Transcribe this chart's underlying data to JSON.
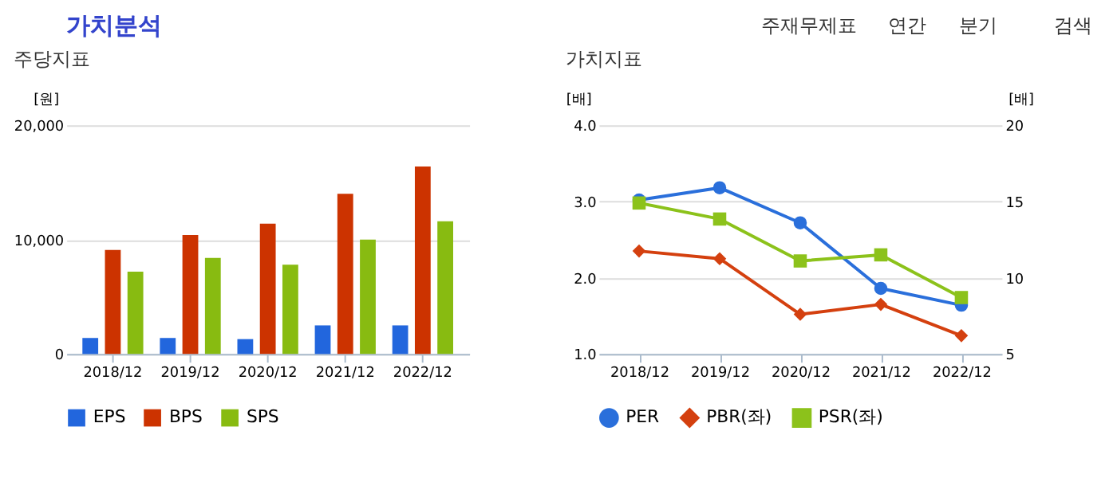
{
  "chart_data": [
    {
      "type": "other",
      "title": "가치분석",
      "annotations": [
        "주재무제표",
        "연간",
        "분기",
        "검색"
      ]
    },
    {
      "type": "bar",
      "title": "주당지표",
      "ylabel": "[원]",
      "categories": [
        "2018/12",
        "2019/12",
        "2020/12",
        "2021/12",
        "2022/12"
      ],
      "series": [
        {
          "name": "EPS",
          "color": "#2266dd",
          "values": [
            1400,
            1400,
            1300,
            2500,
            2500
          ]
        },
        {
          "name": "BPS",
          "color": "#cc3300",
          "values": [
            9100,
            10400,
            11400,
            14000,
            16400
          ]
        },
        {
          "name": "SPS",
          "color": "#88bb11",
          "values": [
            7200,
            8400,
            7800,
            10000,
            11600
          ]
        }
      ],
      "ylim": [
        0,
        20000
      ],
      "yticks": [
        0,
        {
          "value": 10000,
          "label": "10,000"
        },
        {
          "value": 20000,
          "label": "20,000"
        }
      ],
      "grid": "y",
      "legend": "bottom"
    },
    {
      "type": "line",
      "title": "가치지표",
      "ylabel": "[배]",
      "y2label": "[배]",
      "categories": [
        "2018/12",
        "2019/12",
        "2020/12",
        "2021/12",
        "2022/12"
      ],
      "series": [
        {
          "name": "PER",
          "color": "#2a6fdb",
          "marker": "circle",
          "axis": "y2",
          "values": [
            15.1,
            15.9,
            13.6,
            9.3,
            8.2
          ]
        },
        {
          "name": "PBR(좌)",
          "color": "#d4400f",
          "marker": "diamond",
          "values": [
            2.35,
            2.25,
            1.52,
            1.65,
            1.24
          ]
        },
        {
          "name": "PSR(좌)",
          "color": "#8cc21b",
          "marker": "square",
          "values": [
            2.98,
            2.77,
            2.22,
            2.3,
            1.74
          ]
        }
      ],
      "ylim": [
        1,
        4
      ],
      "yticks": [
        {
          "value": 1,
          "label": "1.0"
        },
        {
          "value": 2,
          "label": "2.0"
        },
        {
          "value": 3,
          "label": "3.0"
        },
        {
          "value": 4,
          "label": "4.0"
        }
      ],
      "y2lim": [
        5,
        20
      ],
      "y2ticks": [
        5,
        10,
        15,
        20
      ],
      "grid": "y",
      "legend": "bottom",
      "line_style": "solid"
    }
  ]
}
